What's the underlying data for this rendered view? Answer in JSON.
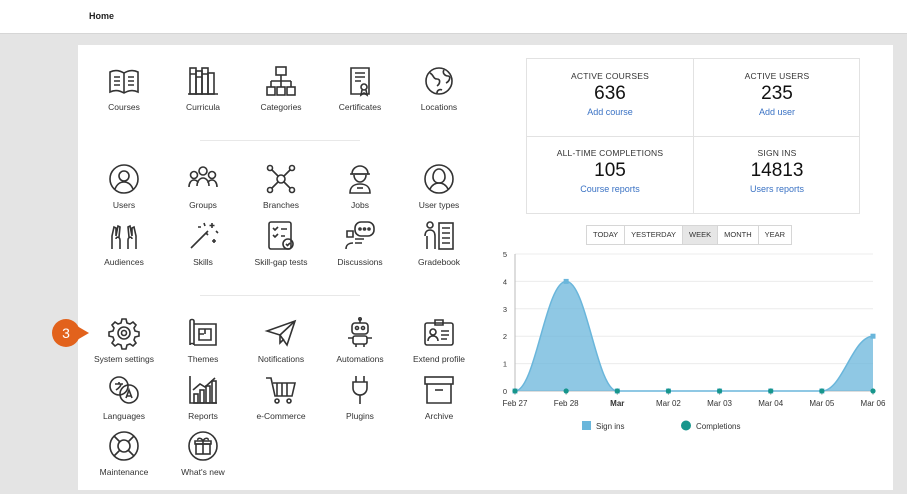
{
  "header": {
    "title": "Home"
  },
  "tiles": [
    {
      "label": "Courses",
      "icon": "book-icon"
    },
    {
      "label": "Curricula",
      "icon": "bookshelf-icon"
    },
    {
      "label": "Categories",
      "icon": "hierarchy-icon"
    },
    {
      "label": "Certificates",
      "icon": "certificate-icon"
    },
    {
      "label": "Locations",
      "icon": "globe-icon"
    },
    {
      "label": "Users",
      "icon": "user-icon"
    },
    {
      "label": "Groups",
      "icon": "group-icon"
    },
    {
      "label": "Branches",
      "icon": "network-icon"
    },
    {
      "label": "Jobs",
      "icon": "worker-icon"
    },
    {
      "label": "User types",
      "icon": "user-type-icon"
    },
    {
      "label": "Audiences",
      "icon": "raised-hands-icon"
    },
    {
      "label": "Skills",
      "icon": "magic-wand-icon"
    },
    {
      "label": "Skill-gap tests",
      "icon": "checklist-icon"
    },
    {
      "label": "Discussions",
      "icon": "chat-icon"
    },
    {
      "label": "Gradebook",
      "icon": "gradebook-icon"
    },
    {
      "label": "System settings",
      "icon": "gear-icon"
    },
    {
      "label": "Themes",
      "icon": "blueprint-icon"
    },
    {
      "label": "Notifications",
      "icon": "paper-plane-icon"
    },
    {
      "label": "Automations",
      "icon": "robot-icon"
    },
    {
      "label": "Extend profile",
      "icon": "id-card-icon"
    },
    {
      "label": "Languages",
      "icon": "translate-icon"
    },
    {
      "label": "Reports",
      "icon": "bar-chart-icon"
    },
    {
      "label": "e-Commerce",
      "icon": "cart-icon"
    },
    {
      "label": "Plugins",
      "icon": "plug-icon"
    },
    {
      "label": "Archive",
      "icon": "archive-box-icon"
    },
    {
      "label": "Maintenance",
      "icon": "lifebuoy-icon"
    },
    {
      "label": "What's new",
      "icon": "gift-icon"
    }
  ],
  "badge": {
    "number": "3",
    "color": "#e2621c"
  },
  "stats": [
    {
      "caption": "ACTIVE COURSES",
      "value": "636",
      "link": "Add course"
    },
    {
      "caption": "ACTIVE USERS",
      "value": "235",
      "link": "Add user"
    },
    {
      "caption": "ALL-TIME COMPLETIONS",
      "value": "105",
      "link": "Course reports"
    },
    {
      "caption": "SIGN INS",
      "value": "14813",
      "link": "Users reports"
    }
  ],
  "periods": [
    {
      "label": "TODAY",
      "active": false
    },
    {
      "label": "YESTERDAY",
      "active": false
    },
    {
      "label": "WEEK",
      "active": true
    },
    {
      "label": "MONTH",
      "active": false
    },
    {
      "label": "YEAR",
      "active": false
    }
  ],
  "colors": {
    "accent": "#3a72c4",
    "signins": "#6ab6db",
    "completions": "#17968c"
  },
  "chart_data": {
    "type": "area",
    "categories": [
      "Feb 27",
      "Feb 28",
      "Mar",
      "Mar 02",
      "Mar 03",
      "Mar 04",
      "Mar 05",
      "Mar 06"
    ],
    "bold_category": "Mar",
    "series": [
      {
        "name": "Sign ins",
        "values": [
          0,
          4,
          0,
          0,
          0,
          0,
          0,
          2
        ]
      },
      {
        "name": "Completions",
        "values": [
          0,
          0,
          0,
          0,
          0,
          0,
          0,
          0
        ]
      }
    ],
    "ylim": [
      0,
      5
    ],
    "yticks": [
      "0",
      "1",
      "2",
      "3",
      "4",
      "5"
    ],
    "grid": true,
    "legend": "bottom"
  }
}
